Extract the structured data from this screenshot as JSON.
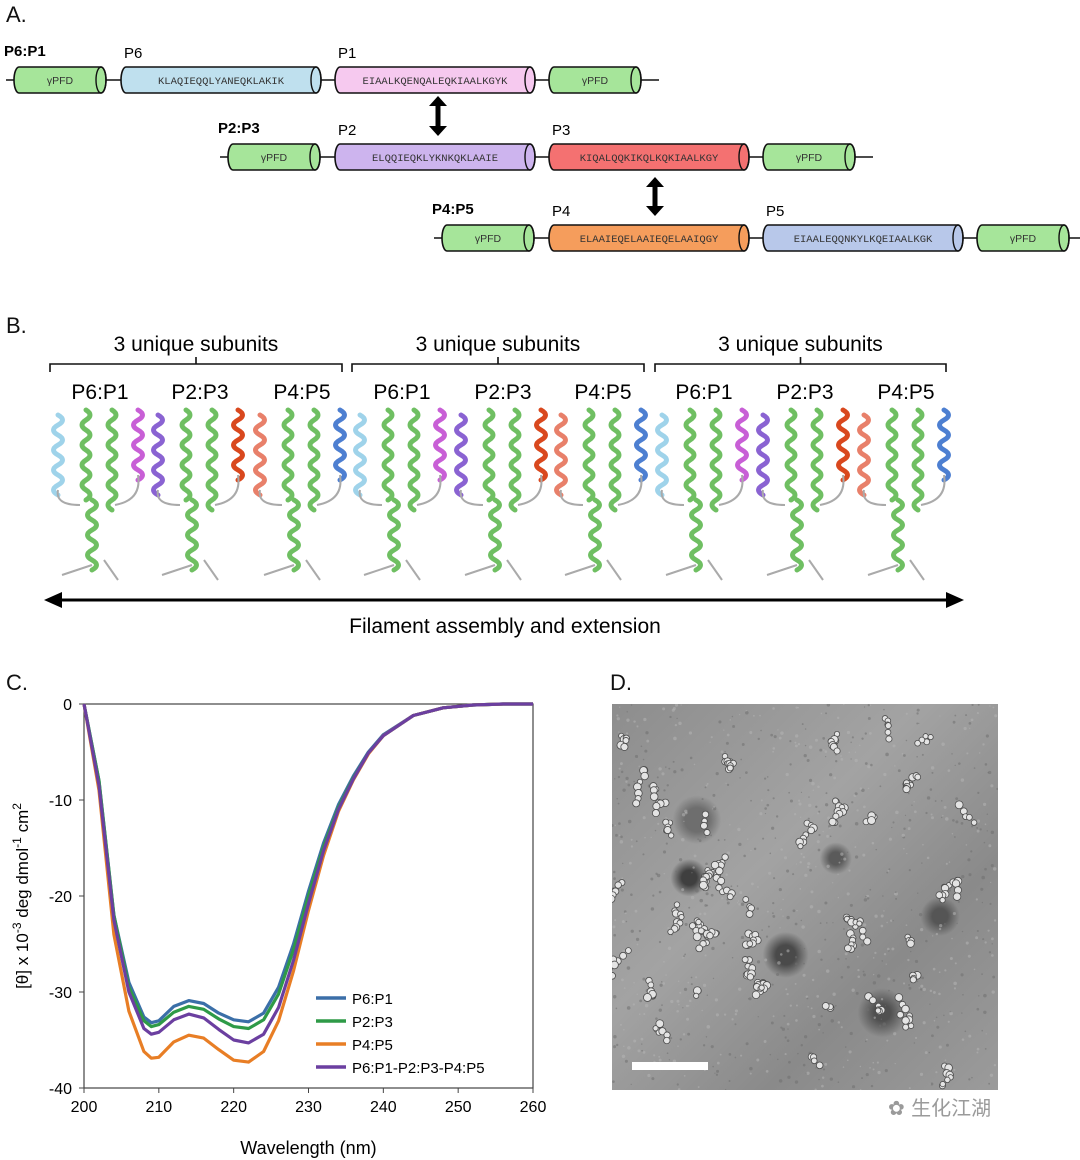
{
  "panelA": {
    "letter": "A.",
    "rows": [
      {
        "name": "P6:P1",
        "left_label": "P6",
        "left_seq": "KLAQIEQQLYANEQKLAKIK",
        "left_color": "#bfe0ee",
        "right_label": "P1",
        "right_seq": "EIAALKQENQALEQKIAALKGYK",
        "right_color": "#f6c9ef"
      },
      {
        "name": "P2:P3",
        "left_label": "P2",
        "left_seq": "ELQQIEQKLYKNKQKLAAIE",
        "left_color": "#cdb4ee",
        "right_label": "P3",
        "right_seq": "KIQALQQKIKQLKQKIAALKGY",
        "right_color": "#f47171"
      },
      {
        "name": "P4:P5",
        "left_label": "P4",
        "left_seq": "ELAAIEQELAAIEQELAAIQGY",
        "left_color": "#f59d5c",
        "right_label": "P5",
        "right_seq": "EIAALEQQNKYLKQEIAALKGK",
        "right_color": "#b8c8ea"
      }
    ],
    "pfd_label": "γPFD",
    "pfd_color": "#a6e59a"
  },
  "panelB": {
    "letter": "B.",
    "group_label": "3 unique subunits",
    "subunits": [
      "P6:P1",
      "P2:P3",
      "P4:P5",
      "P6:P1",
      "P2:P3",
      "P4:P5",
      "P6:P1",
      "P2:P3",
      "P4:P5"
    ],
    "subunit_colors": [
      {
        "left": "#9fd3ea",
        "right": "#c85fd6"
      },
      {
        "left": "#8a63d2",
        "right": "#d9481e"
      },
      {
        "left": "#e8806a",
        "right": "#4d7fd1"
      }
    ],
    "arrow_label": "Filament assembly and extension"
  },
  "panelC": {
    "letter": "C.",
    "chart_data": {
      "type": "line",
      "xlabel": "Wavelength (nm)",
      "ylabel": "[θ] x 10-3 deg dmol-1 cm2",
      "xlim": [
        200,
        260
      ],
      "ylim": [
        -40,
        0
      ],
      "xticks": [
        200,
        210,
        220,
        230,
        240,
        250,
        260
      ],
      "yticks": [
        0,
        -10,
        -20,
        -30,
        -40
      ],
      "legend_position": "bottom-right",
      "series": [
        {
          "name": "P6:P1",
          "color": "#3b6fa8",
          "points": [
            [
              200,
              0
            ],
            [
              202,
              -8
            ],
            [
              204,
              -22
            ],
            [
              206,
              -29
            ],
            [
              208,
              -32.6
            ],
            [
              209,
              -33.2
            ],
            [
              210,
              -33
            ],
            [
              212,
              -31.5
            ],
            [
              214,
              -30.9
            ],
            [
              216,
              -31.2
            ],
            [
              218,
              -32.2
            ],
            [
              220,
              -32.9
            ],
            [
              222,
              -33.1
            ],
            [
              224,
              -32.2
            ],
            [
              226,
              -29.5
            ],
            [
              228,
              -25
            ],
            [
              230,
              -19.5
            ],
            [
              232,
              -14.5
            ],
            [
              234,
              -10.5
            ],
            [
              236,
              -7.5
            ],
            [
              238,
              -5
            ],
            [
              240,
              -3.2
            ],
            [
              244,
              -1.2
            ],
            [
              248,
              -0.4
            ],
            [
              252,
              -0.1
            ],
            [
              256,
              0
            ],
            [
              260,
              0
            ]
          ]
        },
        {
          "name": "P2:P3",
          "color": "#2e9a47",
          "points": [
            [
              200,
              0
            ],
            [
              202,
              -8
            ],
            [
              204,
              -22
            ],
            [
              206,
              -29.5
            ],
            [
              208,
              -33
            ],
            [
              209,
              -33.6
            ],
            [
              210,
              -33.4
            ],
            [
              212,
              -32.1
            ],
            [
              214,
              -31.5
            ],
            [
              216,
              -31.8
            ],
            [
              218,
              -32.8
            ],
            [
              220,
              -33.6
            ],
            [
              222,
              -33.8
            ],
            [
              224,
              -32.9
            ],
            [
              226,
              -30.2
            ],
            [
              228,
              -25.6
            ],
            [
              230,
              -20
            ],
            [
              232,
              -14.9
            ],
            [
              234,
              -10.8
            ],
            [
              236,
              -7.7
            ],
            [
              238,
              -5.1
            ],
            [
              240,
              -3.3
            ],
            [
              244,
              -1.2
            ],
            [
              248,
              -0.4
            ],
            [
              252,
              -0.1
            ],
            [
              256,
              0
            ],
            [
              260,
              0
            ]
          ]
        },
        {
          "name": "P4:P5",
          "color": "#e87e25",
          "points": [
            [
              200,
              0
            ],
            [
              202,
              -9
            ],
            [
              204,
              -24
            ],
            [
              206,
              -32
            ],
            [
              208,
              -36.2
            ],
            [
              209,
              -36.9
            ],
            [
              210,
              -36.8
            ],
            [
              212,
              -35.2
            ],
            [
              214,
              -34.5
            ],
            [
              216,
              -34.8
            ],
            [
              218,
              -36
            ],
            [
              220,
              -37.1
            ],
            [
              222,
              -37.3
            ],
            [
              224,
              -36.2
            ],
            [
              226,
              -33
            ],
            [
              228,
              -27.8
            ],
            [
              230,
              -21.5
            ],
            [
              232,
              -15.8
            ],
            [
              234,
              -11.2
            ],
            [
              236,
              -7.9
            ],
            [
              238,
              -5.2
            ],
            [
              240,
              -3.3
            ],
            [
              244,
              -1.2
            ],
            [
              248,
              -0.4
            ],
            [
              252,
              -0.1
            ],
            [
              256,
              0
            ],
            [
              260,
              0
            ]
          ]
        },
        {
          "name": "P6:P1-P2:P3-P4:P5",
          "color": "#6b3fa0",
          "points": [
            [
              200,
              0
            ],
            [
              202,
              -8.5
            ],
            [
              204,
              -22.5
            ],
            [
              206,
              -30
            ],
            [
              208,
              -33.8
            ],
            [
              209,
              -34.4
            ],
            [
              210,
              -34.2
            ],
            [
              212,
              -32.9
            ],
            [
              214,
              -32.3
            ],
            [
              216,
              -32.7
            ],
            [
              218,
              -33.9
            ],
            [
              220,
              -35
            ],
            [
              222,
              -35.3
            ],
            [
              224,
              -34.4
            ],
            [
              226,
              -31.6
            ],
            [
              228,
              -26.7
            ],
            [
              230,
              -20.8
            ],
            [
              232,
              -15.3
            ],
            [
              234,
              -11
            ],
            [
              236,
              -7.8
            ],
            [
              238,
              -5.1
            ],
            [
              240,
              -3.3
            ],
            [
              244,
              -1.2
            ],
            [
              248,
              -0.4
            ],
            [
              252,
              -0.1
            ],
            [
              256,
              0
            ],
            [
              260,
              0
            ]
          ]
        }
      ]
    }
  },
  "panelD": {
    "letter": "D."
  },
  "watermark": "生化江湖"
}
